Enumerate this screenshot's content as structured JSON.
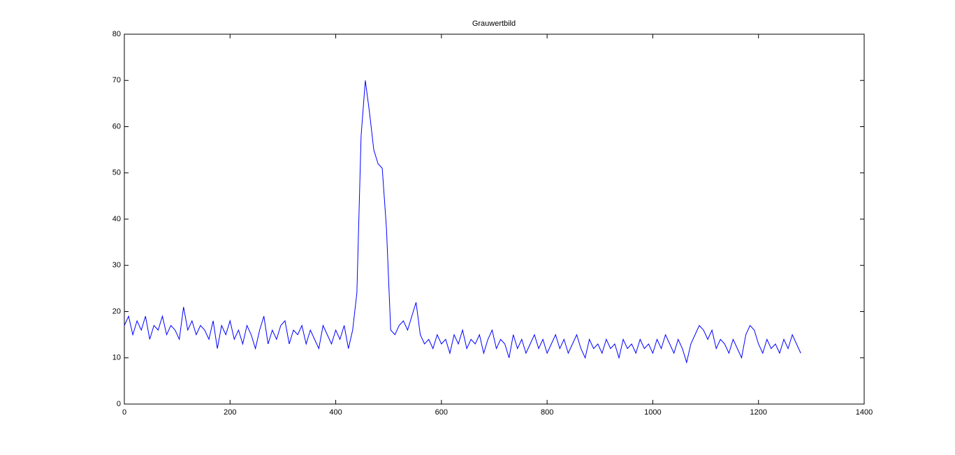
{
  "chart_data": {
    "type": "line",
    "title": "Grauwertbild",
    "x": [
      0,
      8,
      16,
      24,
      32,
      40,
      48,
      56,
      64,
      72,
      80,
      88,
      96,
      104,
      112,
      120,
      128,
      136,
      144,
      152,
      160,
      168,
      176,
      184,
      192,
      200,
      208,
      216,
      224,
      232,
      240,
      248,
      256,
      264,
      272,
      280,
      288,
      296,
      304,
      312,
      320,
      328,
      336,
      344,
      352,
      360,
      368,
      376,
      384,
      392,
      400,
      408,
      416,
      424,
      432,
      440,
      448,
      456,
      464,
      472,
      480,
      488,
      496,
      504,
      512,
      520,
      528,
      536,
      544,
      552,
      560,
      568,
      576,
      584,
      592,
      600,
      608,
      616,
      624,
      632,
      640,
      648,
      656,
      664,
      672,
      680,
      688,
      696,
      704,
      712,
      720,
      728,
      736,
      744,
      752,
      760,
      768,
      776,
      784,
      792,
      800,
      808,
      816,
      824,
      832,
      840,
      848,
      856,
      864,
      872,
      880,
      888,
      896,
      904,
      912,
      920,
      928,
      936,
      944,
      952,
      960,
      968,
      976,
      984,
      992,
      1000,
      1008,
      1016,
      1024,
      1032,
      1040,
      1048,
      1056,
      1064,
      1072,
      1080,
      1088,
      1096,
      1104,
      1112,
      1120,
      1128,
      1136,
      1144,
      1152,
      1160,
      1168,
      1176,
      1184,
      1192,
      1200,
      1208,
      1216,
      1224,
      1232,
      1240,
      1248,
      1256,
      1264,
      1272,
      1280
    ],
    "series": [
      {
        "color": "#0000ff",
        "values": [
          17,
          19,
          15,
          18,
          16,
          19,
          14,
          17,
          16,
          19,
          15,
          17,
          16,
          14,
          21,
          16,
          18,
          15,
          17,
          16,
          14,
          18,
          12,
          17,
          15,
          18,
          14,
          16,
          13,
          17,
          15,
          12,
          16,
          19,
          13,
          16,
          14,
          17,
          18,
          13,
          16,
          15,
          17,
          13,
          16,
          14,
          12,
          17,
          15,
          13,
          16,
          14,
          17,
          12,
          16,
          24,
          58,
          70,
          63,
          55,
          52,
          51,
          38,
          16,
          15,
          17,
          18,
          16,
          19,
          22,
          15,
          13,
          14,
          12,
          15,
          13,
          14,
          11,
          15,
          13,
          16,
          12,
          14,
          13,
          15,
          11,
          14,
          16,
          12,
          14,
          13,
          10,
          15,
          12,
          14,
          11,
          13,
          15,
          12,
          14,
          11,
          13,
          15,
          12,
          14,
          11,
          13,
          15,
          12,
          10,
          14,
          12,
          13,
          11,
          14,
          12,
          13,
          10,
          14,
          12,
          13,
          11,
          14,
          12,
          13,
          11,
          14,
          12,
          15,
          13,
          11,
          14,
          12,
          9,
          13,
          15,
          17,
          16,
          14,
          16,
          12,
          14,
          13,
          11,
          14,
          12,
          10,
          15,
          17,
          16,
          13,
          11,
          14,
          12,
          13,
          11,
          14,
          12,
          15,
          13,
          11
        ]
      }
    ],
    "xlim": [
      0,
      1400
    ],
    "xticks": [
      0,
      200,
      400,
      600,
      800,
      1000,
      1200,
      1400
    ],
    "ylim": [
      0,
      80
    ],
    "yticks": [
      0,
      10,
      20,
      30,
      40,
      50,
      60,
      70,
      80
    ]
  }
}
